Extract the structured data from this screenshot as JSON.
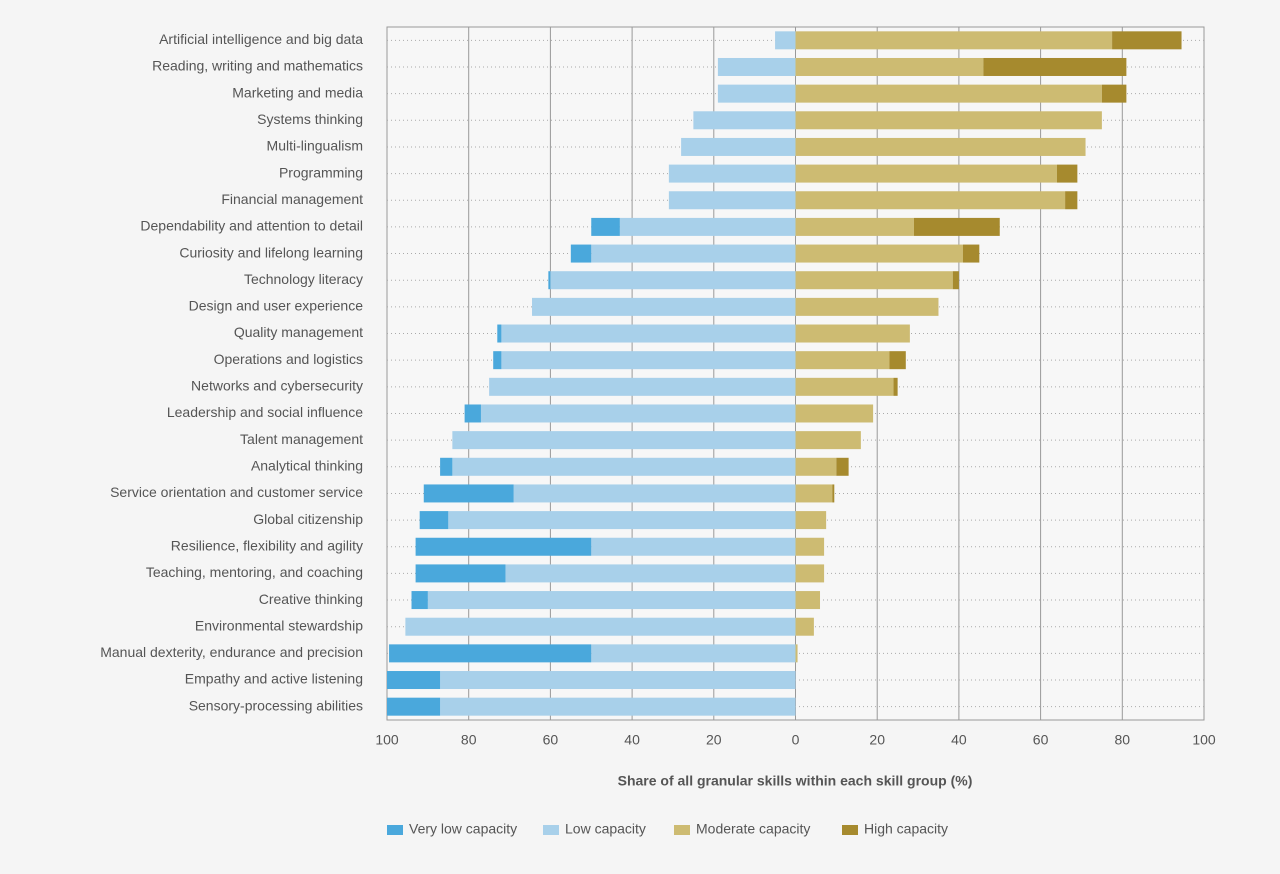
{
  "chart_data": {
    "type": "bar",
    "orientation": "horizontal",
    "stacked": true,
    "x_label": "Share of all granular skills within each skill group (%)",
    "categories": [
      "Artificial intelligence and big data",
      "Reading, writing and mathematics",
      "Marketing and media",
      "Systems thinking",
      "Multi-lingualism",
      "Programming",
      "Financial management",
      "Dependability and attention to detail",
      "Curiosity and lifelong learning",
      "Technology literacy",
      "Design and user experience",
      "Quality management",
      "Operations and logistics",
      "Networks and cybersecurity",
      "Leadership and social influence",
      "Talent management",
      "Analytical thinking",
      "Service orientation and customer service",
      "Global citizenship",
      "Resilience, flexibility and agility",
      "Teaching, mentoring, and coaching",
      "Creative thinking",
      "Environmental stewardship",
      "Manual dexterity, endurance and precision",
      "Empathy and active listening",
      "Sensory-processing abilities"
    ],
    "series": [
      {
        "name": "Very low capacity",
        "color": "#4aa8dc",
        "values": [
          0,
          0,
          0,
          0,
          0,
          0,
          0,
          -7,
          -5,
          -0.5,
          0,
          -1,
          -2,
          0,
          -4,
          0,
          -3,
          -22,
          -7,
          -43,
          -22,
          -4,
          0,
          -49.5,
          -13,
          -13
        ]
      },
      {
        "name": "Low capacity",
        "color": "#a8d0ea",
        "values": [
          -5,
          -19,
          -19,
          -25,
          -28,
          -31,
          -31,
          -43,
          -50,
          -60,
          -64.5,
          -72,
          -72,
          -75,
          -77,
          -84,
          -84,
          -69,
          -85,
          -50,
          -71,
          -90,
          -95.5,
          -50,
          -87,
          -87
        ]
      },
      {
        "name": "Moderate capacity",
        "color": "#cdbb72",
        "values": [
          77.5,
          46,
          75,
          75,
          71,
          64,
          66,
          29,
          41,
          38.5,
          35,
          28,
          23,
          24,
          19,
          16,
          10,
          9,
          7.5,
          7,
          7,
          6,
          4.5,
          0.5,
          0,
          0
        ]
      },
      {
        "name": "High capacity",
        "color": "#a68a2e",
        "values": [
          17,
          35,
          6,
          0,
          0,
          5,
          3,
          21,
          4,
          1.5,
          0,
          0,
          4,
          1,
          0,
          0,
          3,
          0.5,
          0,
          0,
          0,
          0,
          0,
          0,
          0,
          0
        ]
      }
    ],
    "xlim": [
      -100,
      100
    ],
    "xticks": [
      {
        "value": -100,
        "label": "100"
      },
      {
        "value": -80,
        "label": "80"
      },
      {
        "value": -60,
        "label": "60"
      },
      {
        "value": -40,
        "label": "40"
      },
      {
        "value": -20,
        "label": "20"
      },
      0,
      20,
      40,
      60,
      80,
      100
    ],
    "grid": true,
    "legend": "bottom"
  }
}
